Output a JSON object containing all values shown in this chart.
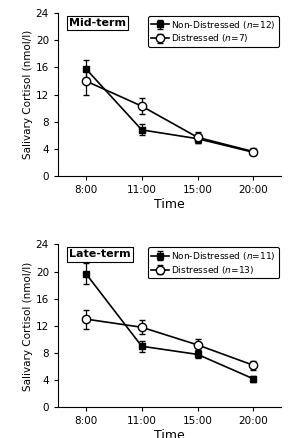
{
  "mid": {
    "title": "Mid-term",
    "non_distressed": {
      "n": "12",
      "y": [
        15.8,
        6.8,
        5.5,
        3.5
      ],
      "yerr": [
        1.3,
        0.8,
        0.7,
        0.3
      ]
    },
    "distressed": {
      "n": "7",
      "y": [
        14.0,
        10.3,
        5.7,
        3.6
      ],
      "yerr": [
        2.0,
        1.2,
        0.8,
        0.5
      ]
    }
  },
  "late": {
    "title": "Late-term",
    "non_distressed": {
      "n": "11",
      "y": [
        19.7,
        9.0,
        7.8,
        4.2
      ],
      "yerr": [
        1.5,
        0.8,
        0.6,
        0.4
      ]
    },
    "distressed": {
      "n": "13",
      "y": [
        13.0,
        11.8,
        9.2,
        6.2
      ],
      "yerr": [
        1.4,
        1.0,
        0.8,
        0.7
      ]
    }
  },
  "x_positions": [
    0,
    1,
    2,
    3
  ],
  "x_labels": [
    "8:00",
    "11:00",
    "15:00",
    "20:00"
  ],
  "ylim": [
    0,
    24
  ],
  "yticks": [
    0,
    4,
    8,
    12,
    16,
    20,
    24
  ],
  "ylabel": "Salivary Cortisol (nmol/l)",
  "xlabel": "Time",
  "color_nd": "#000000"
}
